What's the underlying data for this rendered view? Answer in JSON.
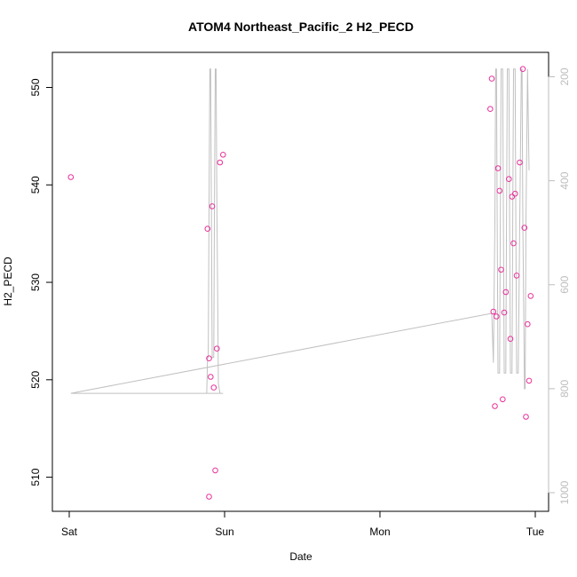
{
  "chart_data": {
    "type": "scatter",
    "title": "ATOM4 Northeast_Pacific_2 H2_PECD",
    "xlabel": "Date",
    "ylabel": "H2_PECD",
    "x_ticks": [
      "Sat",
      "Sun",
      "Mon",
      "Tue"
    ],
    "xlim": [
      0,
      3.1
    ],
    "ylim": [
      506.5,
      553.6
    ],
    "y_ticks": [
      510,
      520,
      530,
      540,
      550
    ],
    "y2_ticks": [
      200,
      400,
      600,
      800,
      1000
    ],
    "y2_reversed": true,
    "grid": false,
    "points_color": "#e8309a",
    "line_color": "#c0c0c0",
    "axis_color": "#000000",
    "y2_color": "#bdbdbd",
    "points": [
      {
        "x": 0.01,
        "y": 540.8
      },
      {
        "x": 0.89,
        "y": 535.5
      },
      {
        "x": 0.9,
        "y": 522.2
      },
      {
        "x": 0.9,
        "y": 508.0
      },
      {
        "x": 0.91,
        "y": 520.3
      },
      {
        "x": 0.92,
        "y": 537.8
      },
      {
        "x": 0.93,
        "y": 519.2
      },
      {
        "x": 0.94,
        "y": 510.7
      },
      {
        "x": 0.95,
        "y": 523.2
      },
      {
        "x": 0.97,
        "y": 542.3
      },
      {
        "x": 0.99,
        "y": 543.1
      },
      {
        "x": 2.71,
        "y": 547.8
      },
      {
        "x": 2.72,
        "y": 550.9
      },
      {
        "x": 2.73,
        "y": 527.0
      },
      {
        "x": 2.74,
        "y": 517.3
      },
      {
        "x": 2.75,
        "y": 526.5
      },
      {
        "x": 2.76,
        "y": 541.7
      },
      {
        "x": 2.77,
        "y": 539.4
      },
      {
        "x": 2.78,
        "y": 531.3
      },
      {
        "x": 2.79,
        "y": 518.0
      },
      {
        "x": 2.8,
        "y": 526.9
      },
      {
        "x": 2.81,
        "y": 529.0
      },
      {
        "x": 2.83,
        "y": 540.6
      },
      {
        "x": 2.84,
        "y": 524.2
      },
      {
        "x": 2.85,
        "y": 538.8
      },
      {
        "x": 2.86,
        "y": 534.0
      },
      {
        "x": 2.87,
        "y": 539.1
      },
      {
        "x": 2.88,
        "y": 530.7
      },
      {
        "x": 2.9,
        "y": 542.3
      },
      {
        "x": 2.92,
        "y": 551.9
      },
      {
        "x": 2.93,
        "y": 535.6
      },
      {
        "x": 2.94,
        "y": 516.2
      },
      {
        "x": 2.95,
        "y": 525.7
      },
      {
        "x": 2.96,
        "y": 519.9
      },
      {
        "x": 2.97,
        "y": 528.6
      }
    ],
    "profile_line": {
      "x": [
        0.01,
        0.99,
        0.97,
        0.96,
        0.955,
        0.95,
        0.945,
        0.94,
        0.935,
        0.93,
        0.92,
        0.915,
        0.91,
        0.905,
        0.9,
        0.895,
        0.89,
        0.885,
        0.01,
        2.72,
        2.73,
        2.74,
        2.745,
        2.75,
        2.755,
        2.76,
        2.77,
        2.775,
        2.78,
        2.79,
        2.795,
        2.8,
        2.81,
        2.815,
        2.82,
        2.83,
        2.835,
        2.84,
        2.85,
        2.855,
        2.86,
        2.87,
        2.875,
        2.88,
        2.89,
        2.9,
        2.91,
        2.915,
        2.92,
        2.93,
        2.935,
        2.94,
        2.95,
        2.96
      ],
      "y2": [
        809,
        809,
        809,
        790,
        600,
        440,
        185,
        185,
        440,
        740,
        740,
        440,
        185,
        185,
        440,
        740,
        740,
        809,
        809,
        655,
        750,
        480,
        185,
        185,
        480,
        770,
        770,
        480,
        185,
        185,
        480,
        770,
        770,
        480,
        185,
        185,
        480,
        770,
        770,
        480,
        185,
        185,
        480,
        770,
        770,
        480,
        185,
        185,
        480,
        800,
        800,
        480,
        185,
        380
      ]
    }
  }
}
